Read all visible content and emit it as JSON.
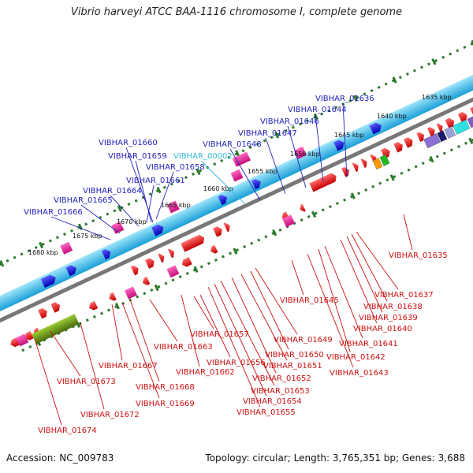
{
  "title": "Vibrio harveyi ATCC BAA-1116 chromosome I, complete genome",
  "footer": {
    "accession": "Accession: NC_009783",
    "summary": "Topology: circular; Length: 3,765,351 bp; Genes: 3,688"
  },
  "colors": {
    "backbone": "#35c4ef",
    "ruler": "#2a7a2a",
    "cds": "#ee1111",
    "rna_pink": "#ee2d9a",
    "blue_cds": "#1010ee",
    "top_label": "#2222bb",
    "highlight_label": "#33bbdd",
    "bottom_label": "#cc1111"
  },
  "scale_labels": [
    "1635 kbp",
    "1640 kbp",
    "1645 kbp",
    "1650 kbp",
    "1655 kbp",
    "1660 kbp",
    "1665 kbp",
    "1670 kbp",
    "1675 kbp",
    "1680 kbp"
  ],
  "top_genes": [
    {
      "label": "VIBHAR_01636",
      "highlight": false
    },
    {
      "label": "VIBHAR_01644",
      "highlight": false
    },
    {
      "label": "VIBHAR_01646",
      "highlight": false
    },
    {
      "label": "VIBHAR_01647",
      "highlight": false
    },
    {
      "label": "VIBHAR_01648",
      "highlight": false
    },
    {
      "label": "VIBHAR_00002",
      "highlight": true
    },
    {
      "label": "VIBHAR_01660",
      "highlight": false
    },
    {
      "label": "VIBHAR_01659",
      "highlight": false
    },
    {
      "label": "VIBHAR_01658",
      "highlight": false
    },
    {
      "label": "VIBHAR_01661",
      "highlight": false
    },
    {
      "label": "VIBHAR_01664",
      "highlight": false
    },
    {
      "label": "VIBHAR_01665",
      "highlight": false
    },
    {
      "label": "VIBHAR_01666",
      "highlight": false
    }
  ],
  "bottom_genes": [
    "VIBHAR_01635",
    "VIBHAR_01637",
    "VIBHAR_01638",
    "VIBHAR_01639",
    "VIBHAR_01640",
    "VIBHAR_01641",
    "VIBHAR_01642",
    "VIBHAR_01643",
    "VIBHAR_01645",
    "VIBHAR_01649",
    "VIBHAR_01650",
    "VIBHAR_01651",
    "VIBHAR_01652",
    "VIBHAR_01653",
    "VIBHAR_01654",
    "VIBHAR_01655",
    "VIBHAR_01656",
    "VIBHAR_01657",
    "VIBHAR_01662",
    "VIBHAR_01663",
    "VIBHAR_01667",
    "VIBHAR_01668",
    "VIBHAR_01669",
    "VIBHAR_01672",
    "VIBHAR_01673",
    "VIBHAR_01674"
  ]
}
